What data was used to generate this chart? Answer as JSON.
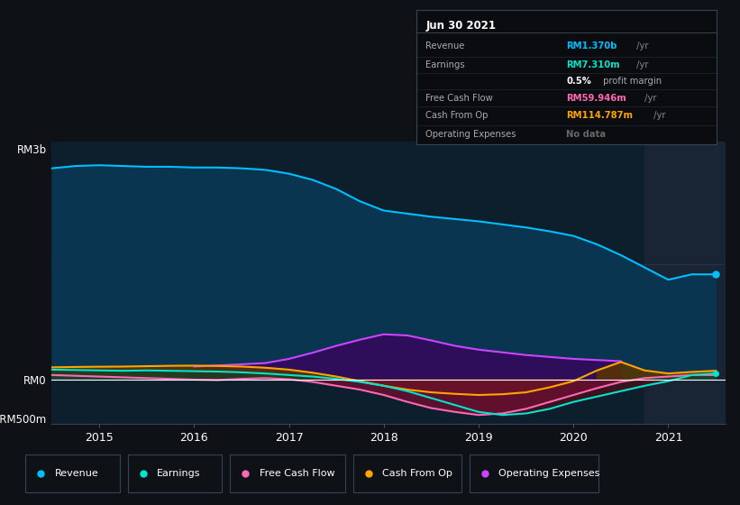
{
  "bg_color": "#0e1116",
  "plot_bg_color": "#0d1e2d",
  "highlight_bg": "#192535",
  "box_bg": "#0a0c10",
  "x_years": [
    2014.5,
    2014.75,
    2015.0,
    2015.25,
    2015.5,
    2015.75,
    2016.0,
    2016.25,
    2016.5,
    2016.75,
    2017.0,
    2017.25,
    2017.5,
    2017.75,
    2018.0,
    2018.25,
    2018.5,
    2018.75,
    2019.0,
    2019.25,
    2019.5,
    2019.75,
    2020.0,
    2020.25,
    2020.5,
    2020.75,
    2021.0,
    2021.25,
    2021.5
  ],
  "revenue": [
    2750,
    2780,
    2790,
    2780,
    2770,
    2770,
    2760,
    2760,
    2750,
    2730,
    2680,
    2600,
    2480,
    2320,
    2200,
    2160,
    2120,
    2090,
    2060,
    2020,
    1980,
    1930,
    1870,
    1760,
    1620,
    1460,
    1300,
    1370,
    1370
  ],
  "earnings": [
    130,
    125,
    120,
    115,
    120,
    115,
    110,
    105,
    95,
    80,
    60,
    40,
    10,
    -30,
    -80,
    -150,
    -240,
    -330,
    -420,
    -460,
    -440,
    -380,
    -290,
    -220,
    -150,
    -80,
    -20,
    60,
    80
  ],
  "free_cash_flow": [
    60,
    50,
    40,
    30,
    20,
    10,
    0,
    -5,
    10,
    20,
    5,
    -30,
    -80,
    -130,
    -200,
    -290,
    -370,
    -420,
    -460,
    -440,
    -380,
    -290,
    -200,
    -110,
    -30,
    20,
    40,
    60,
    60
  ],
  "cash_from_op": [
    160,
    165,
    168,
    170,
    175,
    180,
    182,
    178,
    170,
    155,
    130,
    90,
    40,
    -20,
    -80,
    -130,
    -165,
    -185,
    -200,
    -190,
    -165,
    -100,
    -20,
    120,
    230,
    120,
    80,
    100,
    115
  ],
  "op_expenses": [
    0,
    0,
    0,
    0,
    0,
    0,
    170,
    185,
    200,
    215,
    270,
    350,
    440,
    520,
    590,
    575,
    510,
    440,
    390,
    355,
    320,
    295,
    270,
    255,
    240,
    0,
    0,
    0,
    0
  ],
  "ylim": [
    -580,
    3100
  ],
  "xlim_start": 2014.5,
  "xlim_end": 2021.6,
  "xticks": [
    2015,
    2016,
    2017,
    2018,
    2019,
    2020,
    2021
  ],
  "highlight_x_start": 2020.75,
  "highlight_x_end": 2021.6,
  "revenue_color": "#00bfff",
  "earnings_color": "#00e5cc",
  "fcf_color": "#ff69b4",
  "cashop_color": "#ffa500",
  "opex_color": "#cc44ff",
  "revenue_fill": "#0a3550",
  "opex_fill": "#2e0d5a",
  "earnings_fill_pos": "#0a4030",
  "earnings_fill_neg": "#6a0a10",
  "fcf_fill_neg": "#6a1030",
  "cashop_fill_pos": "#5a3500",
  "cashop_fill_neg": "#5a3000",
  "legend_items": [
    "Revenue",
    "Earnings",
    "Free Cash Flow",
    "Cash From Op",
    "Operating Expenses"
  ],
  "legend_colors": [
    "#00bfff",
    "#00e5cc",
    "#ff69b4",
    "#ffa500",
    "#cc44ff"
  ]
}
